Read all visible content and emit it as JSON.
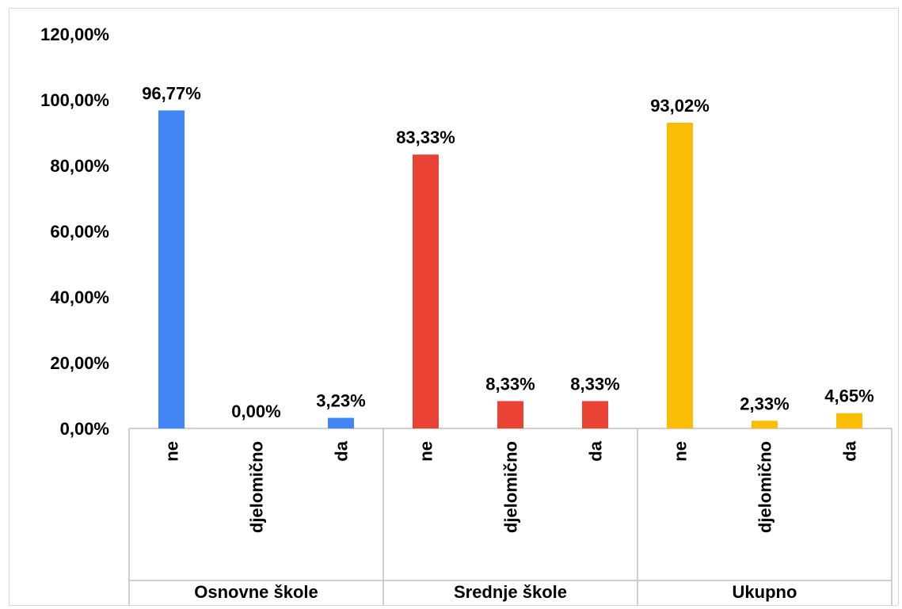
{
  "chart_data": {
    "type": "bar",
    "ylim": [
      0,
      120
    ],
    "y_tick_labels": [
      "0,00%",
      "20,00%",
      "40,00%",
      "60,00%",
      "80,00%",
      "100,00%",
      "120,00%"
    ],
    "grid": false,
    "legend": "none",
    "groups": [
      {
        "name": "Osnovne škole",
        "color": "#4285f4",
        "categories": [
          "ne",
          "djelomično",
          "da"
        ],
        "values": [
          96.77,
          0.0,
          3.23
        ],
        "labels": [
          "96,77%",
          "0,00%",
          "3,23%"
        ]
      },
      {
        "name": "Srednje škole",
        "color": "#ea4335",
        "categories": [
          "ne",
          "djelomično",
          "da"
        ],
        "values": [
          83.33,
          8.33,
          8.33
        ],
        "labels": [
          "83,33%",
          "8,33%",
          "8,33%"
        ]
      },
      {
        "name": "Ukupno",
        "color": "#fbbc04",
        "categories": [
          "ne",
          "djelomično",
          "da"
        ],
        "values": [
          93.02,
          2.33,
          4.65
        ],
        "labels": [
          "93,02%",
          "2,33%",
          "4,65%"
        ]
      }
    ]
  }
}
